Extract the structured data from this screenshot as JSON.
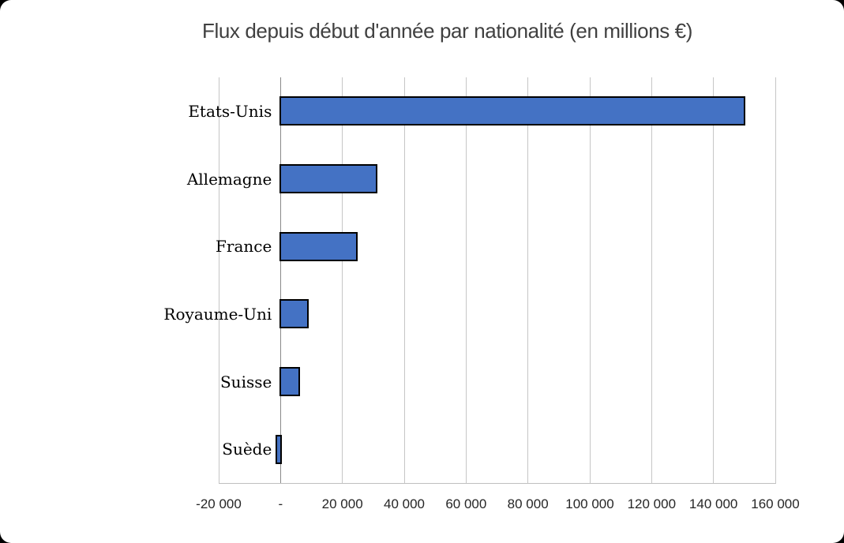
{
  "window": {
    "background_color": "#000000",
    "card_color": "#ffffff"
  },
  "chart_data": {
    "type": "bar",
    "orientation": "horizontal",
    "title": "Flux depuis début d'année par nationalité (en millions €)",
    "categories": [
      "Etats-Unis",
      "Allemagne",
      "France",
      "Royaume-Uni",
      "Suisse",
      "Suède"
    ],
    "values": [
      150000,
      31000,
      24500,
      8700,
      6000,
      -1300
    ],
    "xlim": [
      -20000,
      160000
    ],
    "x_tick_step": 20000,
    "x_tick_values": [
      -20000,
      0,
      20000,
      40000,
      60000,
      80000,
      100000,
      120000,
      140000,
      160000
    ],
    "x_tick_labels": [
      "-20 000",
      "-",
      "20 000",
      "40 000",
      "60 000",
      "80 000",
      "100 000",
      "120 000",
      "140 000",
      "160 000"
    ],
    "grid": true,
    "legend": false,
    "xlabel": "",
    "ylabel": "",
    "colors": {
      "bar_fill": "#4472C4",
      "bar_border": "#000000",
      "gridline": "#C6C6C6",
      "zero_axis_line": "#898989",
      "bottom_axis_line": "#BFBFBF",
      "title_text": "#404040",
      "tick_text": "#262626",
      "category_text": "#000000"
    }
  }
}
